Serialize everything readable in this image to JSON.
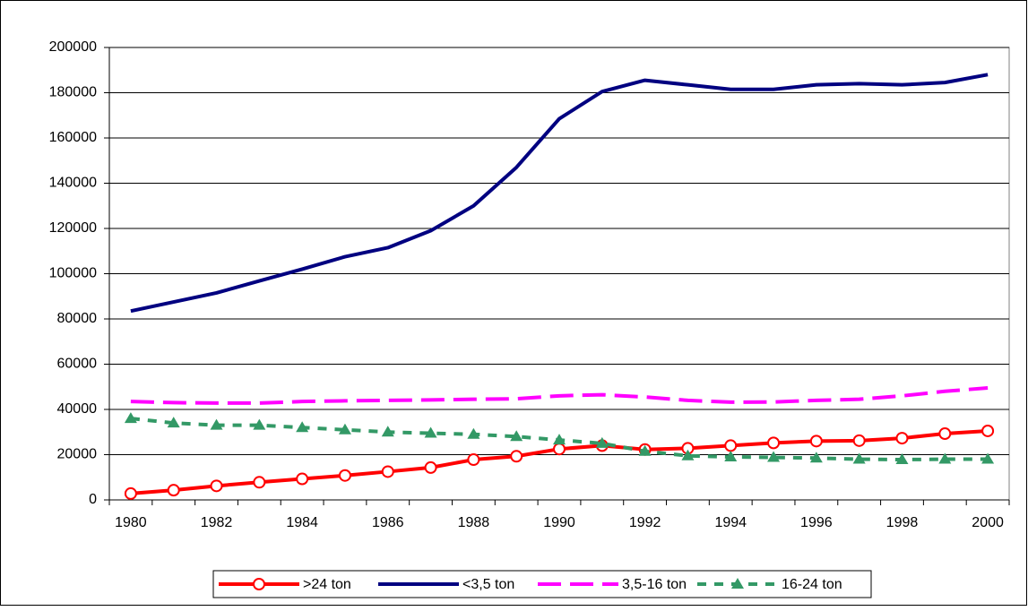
{
  "chart_data": {
    "type": "line",
    "categories": [
      "1980",
      null,
      "1982",
      null,
      "1984",
      null,
      "1986",
      null,
      "1988",
      null,
      "1990",
      null,
      "1992",
      null,
      "1994",
      null,
      "1996",
      null,
      "1998",
      null,
      "2000"
    ],
    "series": [
      {
        "name": ">24 ton",
        "color": "#ff0000",
        "marker": "circle",
        "dash": "solid",
        "values": [
          2800,
          4300,
          6200,
          7800,
          9300,
          10800,
          12500,
          14300,
          17800,
          19300,
          22500,
          24000,
          22300,
          22800,
          24000,
          25200,
          26000,
          26200,
          27300,
          29300,
          30500
        ]
      },
      {
        "name": "<3,5 ton",
        "color": "#000080",
        "marker": "none",
        "dash": "solid",
        "values": [
          83500,
          87500,
          91500,
          96800,
          102000,
          107500,
          111500,
          119000,
          130000,
          147000,
          168500,
          180500,
          185500,
          183500,
          181500,
          181500,
          183500,
          184000,
          183500,
          184500,
          188000
        ]
      },
      {
        "name": "3,5-16 ton",
        "color": "#ff00ff",
        "marker": "none",
        "dash": "long",
        "values": [
          43500,
          43000,
          42800,
          42800,
          43500,
          43800,
          44000,
          44200,
          44500,
          44700,
          46000,
          46500,
          45500,
          44000,
          43200,
          43300,
          44000,
          44500,
          46000,
          48000,
          49500
        ]
      },
      {
        "name": "16-24 ton",
        "color": "#339966",
        "marker": "triangle",
        "dash": "short",
        "values": [
          36000,
          34000,
          33000,
          33000,
          32000,
          31000,
          30000,
          29500,
          29000,
          28000,
          26500,
          25000,
          21500,
          19500,
          19000,
          18800,
          18500,
          18000,
          17800,
          18000,
          18000
        ]
      }
    ],
    "ylim": [
      0,
      200000
    ],
    "yticks": [
      0,
      20000,
      40000,
      60000,
      80000,
      100000,
      120000,
      140000,
      160000,
      180000,
      200000
    ],
    "grid": true,
    "legend": "bottom"
  }
}
